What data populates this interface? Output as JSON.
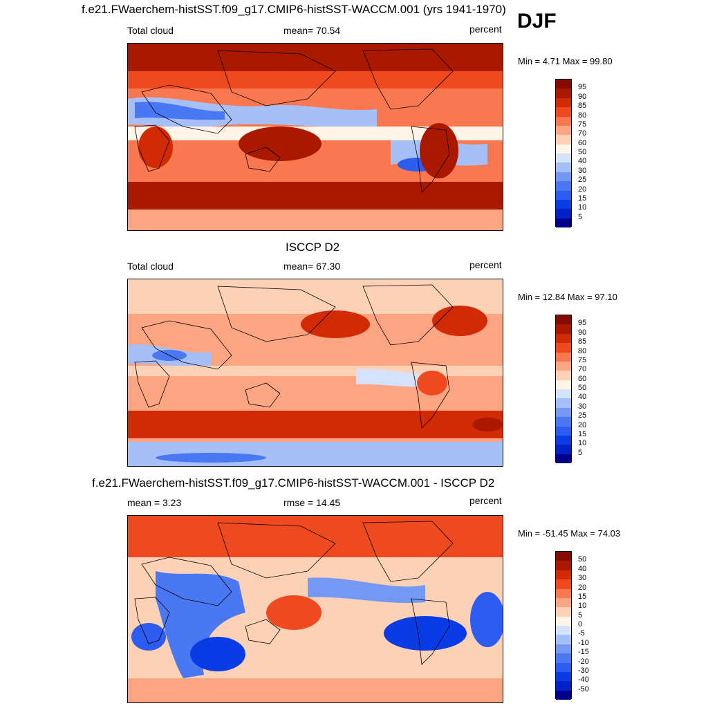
{
  "season": "DJF",
  "panels": [
    {
      "title": "f.e21.FWaerchem-histSST.f09_g17.CMIP6-histSST-WACCM.001 (yrs 1941-1970)",
      "left_label": "Total cloud",
      "center_label": "mean=  70.54",
      "units": "percent",
      "minmax": "Min =   4.71 Max =  99.80",
      "palette": "abs"
    },
    {
      "title": "ISCCP D2",
      "left_label": "Total cloud",
      "center_label": "mean=  67.30",
      "units": "percent",
      "minmax": "Min =  12.84 Max =  97.10",
      "palette": "abs"
    },
    {
      "title": "f.e21.FWaerchem-histSST.f09_g17.CMIP6-histSST-WACCM.001 - ISCCP D2",
      "left_label": "mean =   3.23",
      "center_label": "rmse =  14.45",
      "units": "percent",
      "minmax": "Min = -51.45 Max =  74.03",
      "palette": "diff"
    }
  ],
  "chart_data": [
    {
      "type": "heatmap",
      "title": "f.e21.FWaerchem-histSST.f09_g17.CMIP6-histSST-WACCM.001 (yrs 1941-1970)",
      "variable": "Total cloud",
      "units": "percent",
      "mean": 70.54,
      "min": 4.71,
      "max": 99.8,
      "levels": [
        5,
        10,
        15,
        20,
        25,
        30,
        40,
        50,
        60,
        70,
        75,
        80,
        85,
        90,
        95
      ],
      "colors": [
        "#00008b",
        "#0022c8",
        "#0a3ce6",
        "#2c5cf0",
        "#4a78f2",
        "#7499f4",
        "#a6bff7",
        "#d5e2fb",
        "#fff4e6",
        "#fcd1b5",
        "#fca583",
        "#f9784f",
        "#ef4a1f",
        "#d22a05",
        "#aa1800",
        "#870a00"
      ]
    },
    {
      "type": "heatmap",
      "title": "ISCCP D2",
      "variable": "Total cloud",
      "units": "percent",
      "mean": 67.3,
      "min": 12.84,
      "max": 97.1,
      "levels": [
        5,
        10,
        15,
        20,
        25,
        30,
        40,
        50,
        60,
        70,
        75,
        80,
        85,
        90,
        95
      ],
      "colors": [
        "#00008b",
        "#0022c8",
        "#0a3ce6",
        "#2c5cf0",
        "#4a78f2",
        "#7499f4",
        "#a6bff7",
        "#d5e2fb",
        "#fff4e6",
        "#fcd1b5",
        "#fca583",
        "#f9784f",
        "#ef4a1f",
        "#d22a05",
        "#aa1800",
        "#870a00"
      ]
    },
    {
      "type": "heatmap",
      "title": "f.e21.FWaerchem-histSST.f09_g17.CMIP6-histSST-WACCM.001 - ISCCP D2",
      "units": "percent",
      "mean": 3.23,
      "rmse": 14.45,
      "min": -51.45,
      "max": 74.03,
      "levels": [
        -50,
        -40,
        -30,
        -20,
        -15,
        -10,
        -5,
        0,
        5,
        10,
        15,
        20,
        30,
        40,
        50
      ],
      "colors": [
        "#00008b",
        "#0022c8",
        "#0a3ce6",
        "#2c5cf0",
        "#4a78f2",
        "#7499f4",
        "#a6bff7",
        "#d5e2fb",
        "#fff4e6",
        "#fcd1b5",
        "#fca583",
        "#f9784f",
        "#ef4a1f",
        "#d22a05",
        "#aa1800",
        "#870a00"
      ]
    }
  ]
}
